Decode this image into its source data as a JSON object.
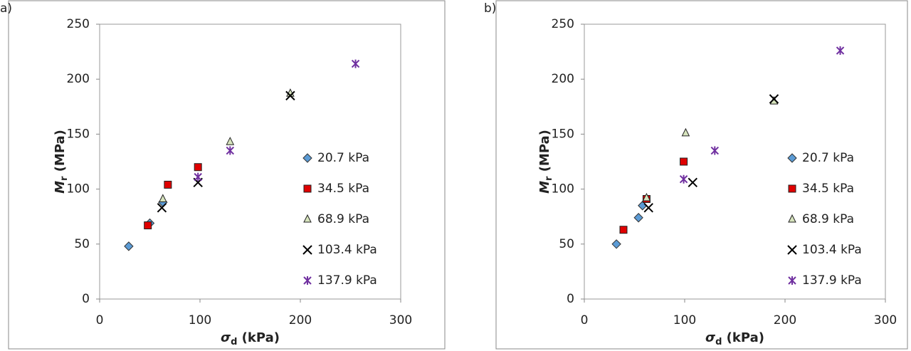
{
  "chart_data": [
    {
      "type": "scatter",
      "panel_label": "a)",
      "x_label": {
        "symbol": "σ",
        "subscript": "d",
        "unit": "(kPa)"
      },
      "y_label": {
        "symbol": "M",
        "subscript": "r",
        "unit": "(MPa)"
      },
      "xlim": [
        0,
        300
      ],
      "xticks": [
        0,
        100,
        200,
        300
      ],
      "ylim": [
        0,
        250
      ],
      "yticks": [
        0,
        50,
        100,
        150,
        200,
        250
      ],
      "series": [
        {
          "name": "20.7 kPa",
          "color": "#5b9bd5",
          "marker": "diamond",
          "x": [
            29,
            50,
            63
          ],
          "values": [
            48,
            69,
            88
          ]
        },
        {
          "name": "34.5 kPa",
          "color": "#e00000",
          "marker": "square",
          "x": [
            48,
            68,
            98
          ],
          "values": [
            67,
            104,
            120
          ]
        },
        {
          "name": "68.9 kPa",
          "color": "#d7e4bd",
          "marker": "triangle",
          "x": [
            63,
            130,
            190
          ],
          "values": [
            91,
            143,
            187
          ]
        },
        {
          "name": "103.4 kPa",
          "color": "#000000",
          "marker": "x",
          "x": [
            62,
            98,
            190
          ],
          "values": [
            83,
            106,
            185
          ]
        },
        {
          "name": "137.9 kPa",
          "color": "#7030a0",
          "marker": "star",
          "x": [
            98,
            130,
            255
          ],
          "values": [
            111,
            135,
            214
          ]
        }
      ]
    },
    {
      "type": "scatter",
      "panel_label": "b)",
      "x_label": {
        "symbol": "σ",
        "subscript": "d",
        "unit": "(kPa)"
      },
      "y_label": {
        "symbol": "M",
        "subscript": "r",
        "unit": "(MPa)"
      },
      "xlim": [
        0,
        300
      ],
      "xticks": [
        0,
        100,
        200,
        300
      ],
      "ylim": [
        0,
        250
      ],
      "yticks": [
        0,
        50,
        100,
        150,
        200,
        250
      ],
      "series": [
        {
          "name": "20.7 kPa",
          "color": "#5b9bd5",
          "marker": "diamond",
          "x": [
            32,
            54,
            58
          ],
          "values": [
            50,
            74,
            85
          ]
        },
        {
          "name": "34.5 kPa",
          "color": "#e00000",
          "marker": "square",
          "x": [
            39,
            62,
            99
          ],
          "values": [
            63,
            91,
            125
          ]
        },
        {
          "name": "68.9 kPa",
          "color": "#d7e4bd",
          "marker": "triangle",
          "x": [
            62,
            101,
            189
          ],
          "values": [
            92,
            151,
            180
          ]
        },
        {
          "name": "103.4 kPa",
          "color": "#000000",
          "marker": "x",
          "x": [
            64,
            108,
            189
          ],
          "values": [
            83,
            106,
            182
          ]
        },
        {
          "name": "137.9 kPa",
          "color": "#7030a0",
          "marker": "star",
          "x": [
            99,
            130,
            255
          ],
          "values": [
            109,
            135,
            226
          ]
        }
      ]
    }
  ]
}
